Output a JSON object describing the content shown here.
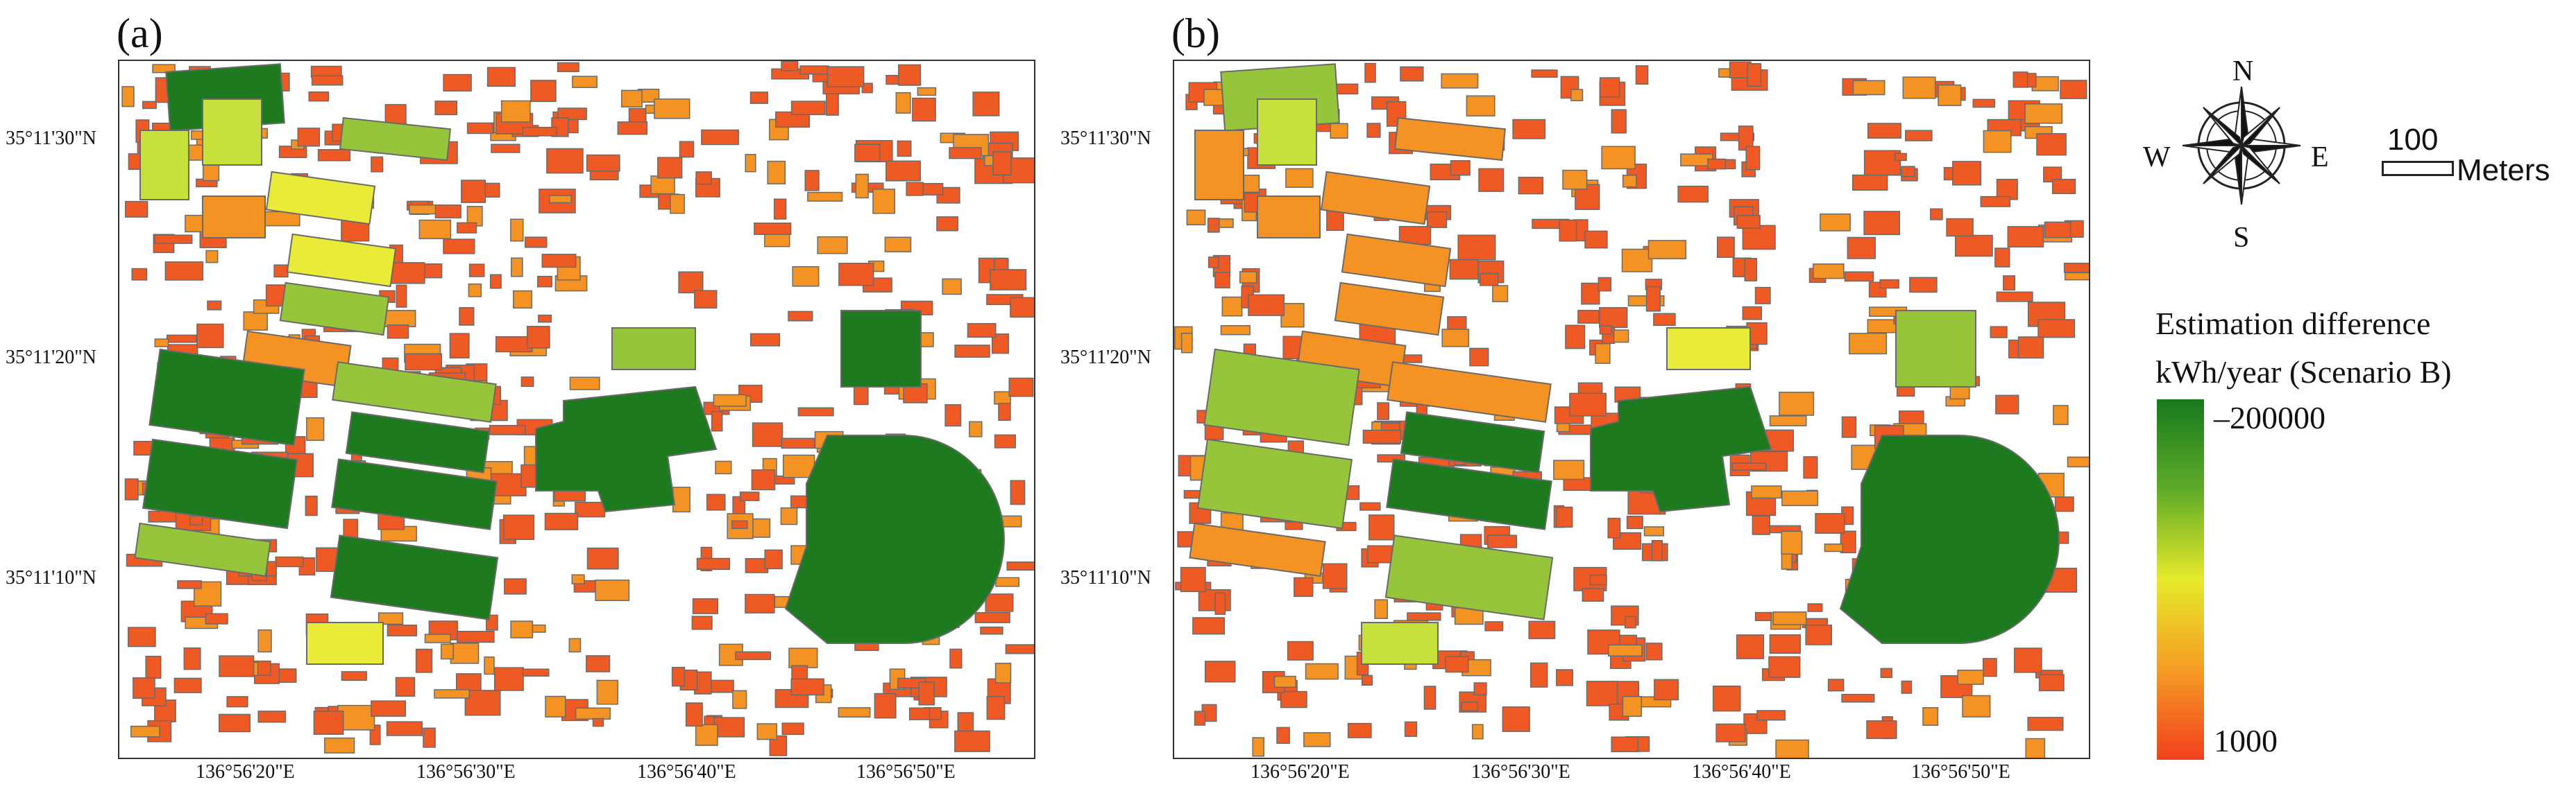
{
  "panels": [
    {
      "label": "(a)"
    },
    {
      "label": "(b)"
    }
  ],
  "lat_ticks": [
    "35°11'30\"N",
    "35°11'20\"N",
    "35°11'10\"N"
  ],
  "lon_ticks": [
    "136°56'20\"E",
    "136°56'30\"E",
    "136°56'40\"E",
    "136°56'50\"E"
  ],
  "compass": {
    "n": "N",
    "s": "S",
    "e": "E",
    "w": "W"
  },
  "scale_bar": {
    "value": "100",
    "unit": "Meters"
  },
  "legend": {
    "title_line1": "Estimation difference",
    "title_line2": "kWh/year (Scenario B)",
    "max_label": "–200000",
    "min_label": "1000",
    "ramp_colors": [
      "#177a1e",
      "#5fab28",
      "#e6ea2a",
      "#f59c24",
      "#f2401e"
    ]
  },
  "colors": {
    "building_red": "#ef5a24",
    "building_orange": "#f49324",
    "dark_green": "#1e7a1e",
    "light_green": "#96c43a",
    "yellow_green": "#c8e03a",
    "yellow": "#eaeb38",
    "outline": "#6a6a6a"
  }
}
